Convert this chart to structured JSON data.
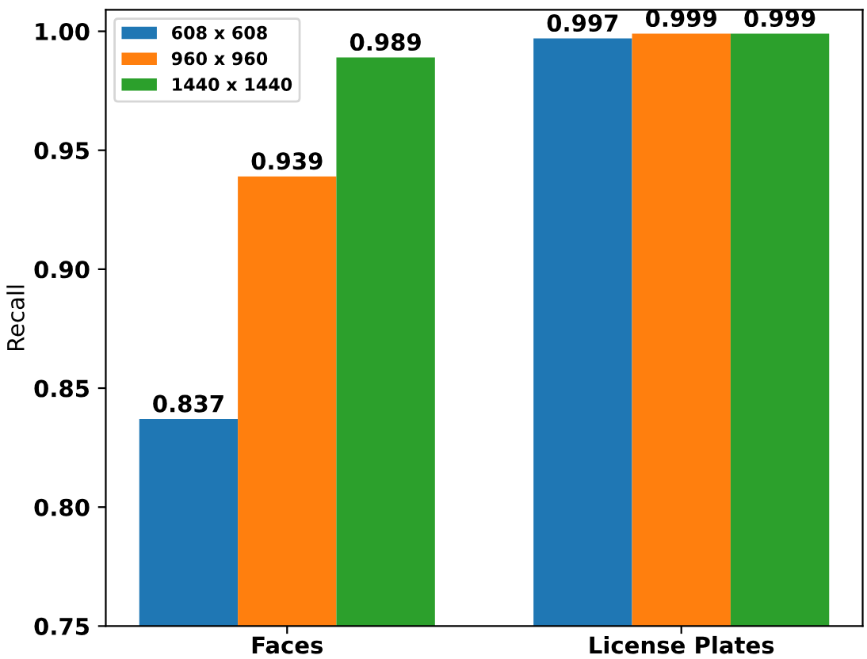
{
  "chart_data": {
    "type": "bar",
    "ylabel": "Recall",
    "categories": [
      "Faces",
      "License Plates"
    ],
    "series": [
      {
        "name": "608 x 608",
        "color": "#1f77b4",
        "values": [
          0.837,
          0.997
        ]
      },
      {
        "name": "960 x 960",
        "color": "#ff7f0e",
        "values": [
          0.939,
          0.999
        ]
      },
      {
        "name": "1440 x 1440",
        "color": "#2ca02c",
        "values": [
          0.989,
          0.999
        ]
      }
    ],
    "ylim": [
      0.75,
      1.009
    ],
    "yticks": [
      {
        "value": 0.75,
        "label": "0.75"
      },
      {
        "value": 0.8,
        "label": "0.80"
      },
      {
        "value": 0.85,
        "label": "0.85"
      },
      {
        "value": 0.9,
        "label": "0.90"
      },
      {
        "value": 0.95,
        "label": "0.95"
      },
      {
        "value": 1.0,
        "label": "1.00"
      }
    ],
    "data_labels": true,
    "legend": "top left",
    "grid": false
  }
}
